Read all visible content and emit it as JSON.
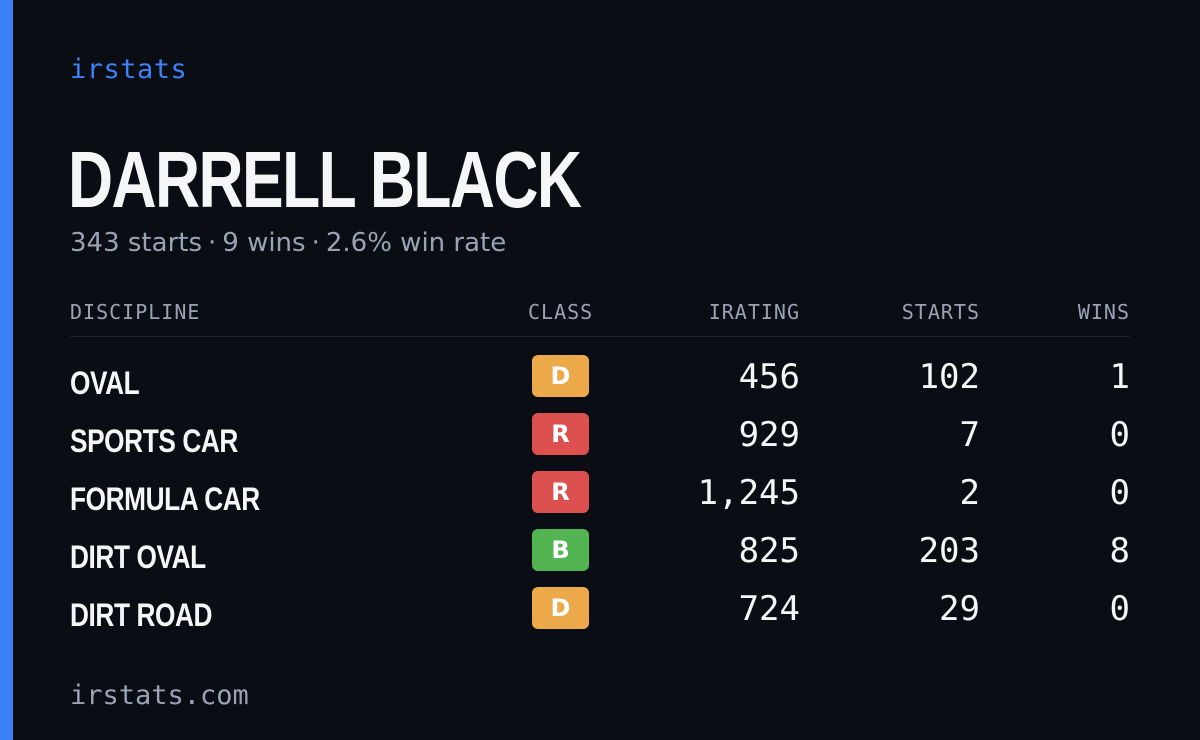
{
  "brand": "irstats",
  "driver": {
    "name": "DARRELL BLACK",
    "starts_text": "343 starts",
    "wins_text": "9 wins",
    "win_rate_text": "2.6% win rate",
    "separator": "·"
  },
  "table": {
    "headers": {
      "discipline": "DISCIPLINE",
      "class": "CLASS",
      "irating": "IRATING",
      "starts": "STARTS",
      "wins": "WINS"
    },
    "rows": [
      {
        "discipline": "OVAL",
        "class": "D",
        "class_color": "#eba94a",
        "irating": "456",
        "starts": "102",
        "wins": "1"
      },
      {
        "discipline": "SPORTS CAR",
        "class": "R",
        "class_color": "#dc5050",
        "irating": "929",
        "starts": "7",
        "wins": "0"
      },
      {
        "discipline": "FORMULA CAR",
        "class": "R",
        "class_color": "#dc5050",
        "irating": "1,245",
        "starts": "2",
        "wins": "0"
      },
      {
        "discipline": "DIRT OVAL",
        "class": "B",
        "class_color": "#52b552",
        "irating": "825",
        "starts": "203",
        "wins": "8"
      },
      {
        "discipline": "DIRT ROAD",
        "class": "D",
        "class_color": "#eba94a",
        "irating": "724",
        "starts": "29",
        "wins": "0"
      }
    ]
  },
  "footer": "irstats.com",
  "colors": {
    "background": "#0b0d14",
    "accent": "#3b82f6",
    "muted": "#9aa3b5",
    "text": "#f5f6f8"
  }
}
